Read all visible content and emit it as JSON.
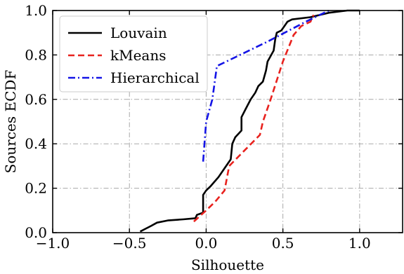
{
  "chart_data": {
    "type": "line",
    "title": "",
    "xlabel": "Silhouette",
    "ylabel": "Sources ECDF",
    "xlim": [
      -1.0,
      1.28
    ],
    "ylim": [
      0.0,
      1.0
    ],
    "x_ticks": [
      -1.0,
      -0.5,
      0.0,
      0.5,
      1.0
    ],
    "x_tick_labels": [
      "−1.0",
      "−0.5",
      "0.0",
      "0.5",
      "1.0"
    ],
    "y_ticks": [
      0.0,
      0.2,
      0.4,
      0.6,
      0.8,
      1.0
    ],
    "y_tick_labels": [
      "0.0",
      "0.2",
      "0.4",
      "0.6",
      "0.8",
      "1.0"
    ],
    "grid": true,
    "legend_position": "top-left",
    "series": [
      {
        "name": "Louvain",
        "color": "#000000",
        "linestyle": "solid",
        "points": [
          [
            -0.43,
            0.005
          ],
          [
            -0.36,
            0.03
          ],
          [
            -0.32,
            0.045
          ],
          [
            -0.25,
            0.055
          ],
          [
            -0.15,
            0.06
          ],
          [
            -0.07,
            0.065
          ],
          [
            -0.06,
            0.08
          ],
          [
            -0.02,
            0.09
          ],
          [
            -0.02,
            0.17
          ],
          [
            0.0,
            0.19
          ],
          [
            0.03,
            0.21
          ],
          [
            0.08,
            0.25
          ],
          [
            0.12,
            0.29
          ],
          [
            0.16,
            0.33
          ],
          [
            0.17,
            0.4
          ],
          [
            0.19,
            0.43
          ],
          [
            0.23,
            0.46
          ],
          [
            0.23,
            0.52
          ],
          [
            0.26,
            0.56
          ],
          [
            0.29,
            0.6
          ],
          [
            0.32,
            0.63
          ],
          [
            0.34,
            0.66
          ],
          [
            0.37,
            0.68
          ],
          [
            0.39,
            0.73
          ],
          [
            0.4,
            0.77
          ],
          [
            0.44,
            0.82
          ],
          [
            0.45,
            0.87
          ],
          [
            0.46,
            0.9
          ],
          [
            0.49,
            0.91
          ],
          [
            0.51,
            0.93
          ],
          [
            0.53,
            0.95
          ],
          [
            0.56,
            0.96
          ],
          [
            0.68,
            0.97
          ],
          [
            0.8,
            0.99
          ],
          [
            0.92,
            1.0
          ],
          [
            1.0,
            1.0
          ]
        ]
      },
      {
        "name": "kMeans",
        "color": "#e8221e",
        "linestyle": "dashed",
        "points": [
          [
            -0.08,
            0.05
          ],
          [
            0.0,
            0.1
          ],
          [
            0.06,
            0.14
          ],
          [
            0.12,
            0.19
          ],
          [
            0.15,
            0.3
          ],
          [
            0.25,
            0.37
          ],
          [
            0.35,
            0.44
          ],
          [
            0.37,
            0.5
          ],
          [
            0.42,
            0.6
          ],
          [
            0.5,
            0.77
          ],
          [
            0.57,
            0.89
          ],
          [
            0.62,
            0.93
          ],
          [
            0.68,
            0.95
          ],
          [
            0.7,
            0.98
          ]
        ]
      },
      {
        "name": "Hierarchical",
        "color": "#1414e6",
        "linestyle": "dashdot",
        "points": [
          [
            -0.02,
            0.32
          ],
          [
            0.0,
            0.5
          ],
          [
            0.04,
            0.6
          ],
          [
            0.07,
            0.75
          ],
          [
            0.4,
            0.86
          ],
          [
            0.65,
            0.95
          ],
          [
            0.8,
            1.0
          ]
        ]
      }
    ]
  }
}
